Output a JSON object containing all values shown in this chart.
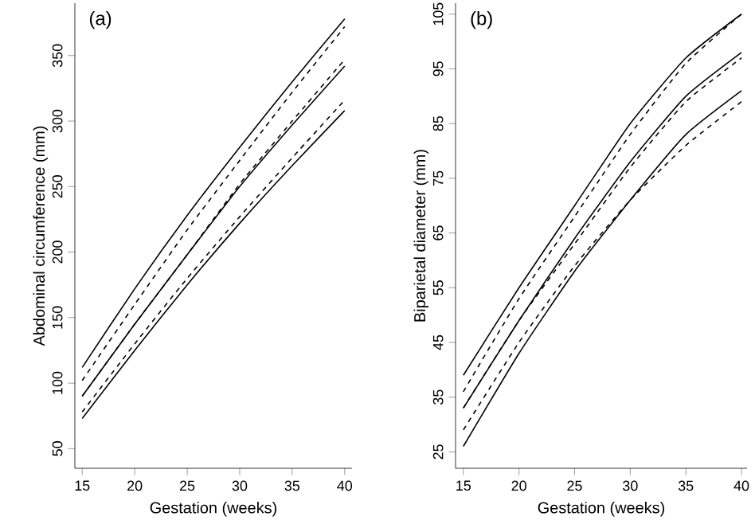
{
  "chart_data": [
    {
      "type": "line",
      "title": "(a)",
      "xlabel": "Gestation (weeks)",
      "ylabel": "Abdominal circumference (mm)",
      "x": [
        15,
        20,
        25,
        30,
        35,
        40
      ],
      "xlim": [
        14.3,
        40.7
      ],
      "ylim": [
        35,
        390
      ],
      "xticks": [
        15,
        20,
        25,
        30,
        35,
        40
      ],
      "yticks": [
        50,
        100,
        150,
        200,
        250,
        300,
        350
      ],
      "series": [
        {
          "color": "#000000",
          "line_style": "solid",
          "values": [
            112,
            172,
            228,
            280,
            330,
            378
          ]
        },
        {
          "color": "#000000",
          "line_style": "solid",
          "values": [
            90,
            145,
            198,
            250,
            297,
            342
          ]
        },
        {
          "color": "#000000",
          "line_style": "solid",
          "values": [
            73,
            125,
            175,
            222,
            266,
            308
          ]
        },
        {
          "color": "#000000",
          "line_style": "dashed",
          "values": [
            102,
            160,
            217,
            270,
            322,
            372
          ]
        },
        {
          "color": "#000000",
          "line_style": "dashed",
          "values": [
            90,
            145,
            198,
            252,
            300,
            347
          ]
        },
        {
          "color": "#000000",
          "line_style": "dashed",
          "values": [
            78,
            130,
            180,
            227,
            272,
            316
          ]
        }
      ]
    },
    {
      "type": "line",
      "title": "(b)",
      "xlabel": "Gestation (weeks)",
      "ylabel": "Biparietal diameter (mm)",
      "x": [
        15,
        20,
        25,
        30,
        35,
        40
      ],
      "xlim": [
        14.3,
        40.5
      ],
      "ylim": [
        22,
        107
      ],
      "xticks": [
        15,
        20,
        25,
        30,
        35,
        40
      ],
      "yticks": [
        25,
        35,
        45,
        55,
        65,
        75,
        85,
        95,
        105
      ],
      "series": [
        {
          "color": "#000000",
          "line_style": "solid",
          "values": [
            39,
            55,
            70,
            85,
            97,
            105
          ]
        },
        {
          "color": "#000000",
          "line_style": "solid",
          "values": [
            33,
            49,
            64,
            78,
            90,
            98
          ]
        },
        {
          "color": "#000000",
          "line_style": "solid",
          "values": [
            26,
            43,
            58,
            71,
            83,
            91
          ]
        },
        {
          "color": "#000000",
          "line_style": "dashed",
          "values": [
            36,
            53,
            68,
            83,
            96,
            105
          ]
        },
        {
          "color": "#000000",
          "line_style": "dashed",
          "values": [
            33,
            49,
            63,
            77,
            89,
            97
          ]
        },
        {
          "color": "#000000",
          "line_style": "dashed",
          "values": [
            29,
            45,
            59,
            71,
            81,
            89
          ]
        }
      ]
    }
  ]
}
